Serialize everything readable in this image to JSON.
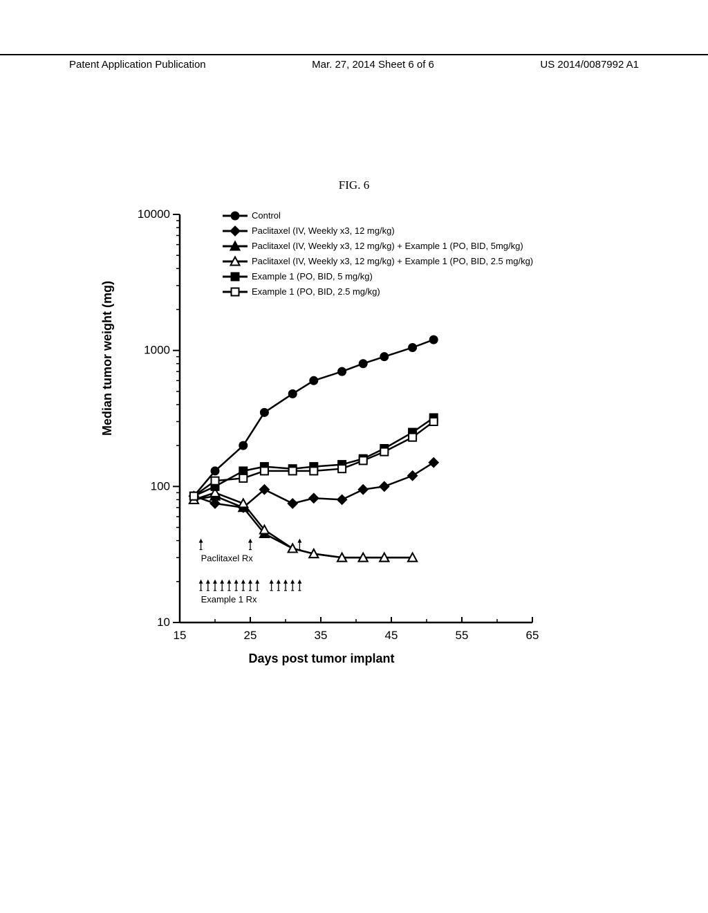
{
  "header": {
    "left": "Patent Application Publication",
    "mid": "Mar. 27, 2014  Sheet 6 of 6",
    "right": "US 2014/0087992 A1"
  },
  "figure": {
    "title": "FIG. 6",
    "ylabel": "Median tumor weight (mg)",
    "xlabel": "Days post tumor implant",
    "type": "line",
    "xlim": [
      15,
      65
    ],
    "ylim_log": [
      10,
      10000
    ],
    "xtick_step": 10,
    "yticks": [
      10,
      100,
      1000,
      10000
    ],
    "yticks_labels": [
      "10",
      "100",
      "1000",
      "10000"
    ],
    "background_color": "#ffffff",
    "axis_color": "#000000",
    "line_width": 2.5,
    "marker_size": 8,
    "legend": {
      "fontsize": 13,
      "items": [
        {
          "label": "Control",
          "marker": "circle",
          "filled": true
        },
        {
          "label": "Paclitaxel (IV, Weekly x3, 12 mg/kg)",
          "marker": "diamond",
          "filled": true
        },
        {
          "label": "Paclitaxel (IV, Weekly x3, 12 mg/kg) + Example 1 (PO, BID,  5mg/kg)",
          "marker": "triangle",
          "filled": true
        },
        {
          "label": "Paclitaxel (IV, Weekly x3, 12 mg/kg) + Example 1 (PO, BID, 2.5 mg/kg)",
          "marker": "triangle",
          "filled": false
        },
        {
          "label": "Example 1 (PO, BID, 5 mg/kg)",
          "marker": "square",
          "filled": true
        },
        {
          "label": "Example 1 (PO, BID, 2.5 mg/kg)",
          "marker": "square",
          "filled": false
        }
      ]
    },
    "series": [
      {
        "name": "Control",
        "marker": "circle",
        "filled": true,
        "color": "#000000",
        "x": [
          17,
          20,
          24,
          27,
          31,
          34,
          38,
          41,
          44,
          48,
          51
        ],
        "y": [
          85,
          130,
          200,
          350,
          480,
          600,
          700,
          800,
          900,
          1050,
          1200
        ]
      },
      {
        "name": "Paclitaxel",
        "marker": "diamond",
        "filled": true,
        "color": "#000000",
        "x": [
          17,
          20,
          24,
          27,
          31,
          34,
          38,
          41,
          44,
          48,
          51
        ],
        "y": [
          85,
          75,
          70,
          95,
          75,
          82,
          80,
          95,
          100,
          120,
          150
        ]
      },
      {
        "name": "Paclitaxel+Ex1_5",
        "marker": "triangle",
        "filled": true,
        "color": "#000000",
        "x": [
          17,
          20,
          24,
          27,
          31,
          34,
          38,
          41,
          44,
          48
        ],
        "y": [
          80,
          85,
          70,
          45,
          35,
          32,
          30,
          30,
          30,
          30
        ]
      },
      {
        "name": "Paclitaxel+Ex1_2.5",
        "marker": "triangle",
        "filled": false,
        "color": "#000000",
        "x": [
          17,
          20,
          24,
          27,
          31,
          34,
          38,
          41,
          44,
          48
        ],
        "y": [
          80,
          90,
          75,
          48,
          35,
          32,
          30,
          30,
          30,
          30
        ]
      },
      {
        "name": "Ex1_5",
        "marker": "square",
        "filled": true,
        "color": "#000000",
        "x": [
          17,
          20,
          24,
          27,
          31,
          34,
          38,
          41,
          44,
          48,
          51
        ],
        "y": [
          85,
          100,
          130,
          140,
          135,
          140,
          145,
          160,
          190,
          250,
          320
        ]
      },
      {
        "name": "Ex1_2.5",
        "marker": "square",
        "filled": false,
        "color": "#000000",
        "x": [
          17,
          20,
          24,
          27,
          31,
          34,
          38,
          41,
          44,
          48,
          51
        ],
        "y": [
          85,
          110,
          115,
          130,
          130,
          130,
          135,
          155,
          180,
          230,
          300
        ]
      }
    ],
    "annotations": [
      {
        "label": "Paclitaxel Rx",
        "arrows_x": [
          18,
          25,
          32
        ],
        "y": 40,
        "fontsize": 13
      },
      {
        "label": "Example 1 Rx",
        "arrows_x": [
          18,
          19,
          20,
          21,
          22,
          23,
          24,
          25,
          26,
          28,
          29,
          30,
          31,
          32
        ],
        "y": 20,
        "fontsize": 13
      }
    ]
  }
}
